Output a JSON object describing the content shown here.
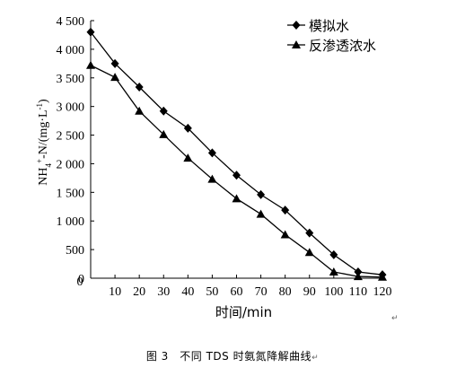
{
  "chart_data": {
    "type": "line",
    "x": [
      0,
      10,
      20,
      30,
      40,
      50,
      60,
      70,
      80,
      90,
      100,
      110,
      120
    ],
    "series": [
      {
        "name": "模拟水",
        "marker": "diamond",
        "values": [
          4300,
          3750,
          3340,
          2920,
          2620,
          2190,
          1800,
          1460,
          1190,
          790,
          410,
          110,
          60
        ]
      },
      {
        "name": "反渗透浓水",
        "marker": "triangle",
        "values": [
          3720,
          3510,
          2920,
          2510,
          2100,
          1730,
          1390,
          1120,
          760,
          450,
          110,
          30,
          20
        ]
      }
    ],
    "xlabel": "时间/min",
    "ylabel": "NH4+-N/(mg·L-1)",
    "xlim": [
      0,
      120
    ],
    "ylim": [
      0,
      4500
    ],
    "xticks": [
      "10",
      "20",
      "30",
      "40",
      "50",
      "60",
      "70",
      "80",
      "90",
      "100",
      "110",
      "120"
    ],
    "yticks": [
      "0",
      "500",
      "1 000",
      "1 500",
      "2 000",
      "2 500",
      "3 000",
      "3 500",
      "4 000",
      "4 500"
    ],
    "origin_label": "0",
    "grid": false,
    "legend_position": "top-right",
    "colors": {
      "line": "#000000",
      "background": "#ffffff"
    }
  },
  "caption": "图 3　不同 TDS 时氨氮降解曲线",
  "return_mark": "↵"
}
